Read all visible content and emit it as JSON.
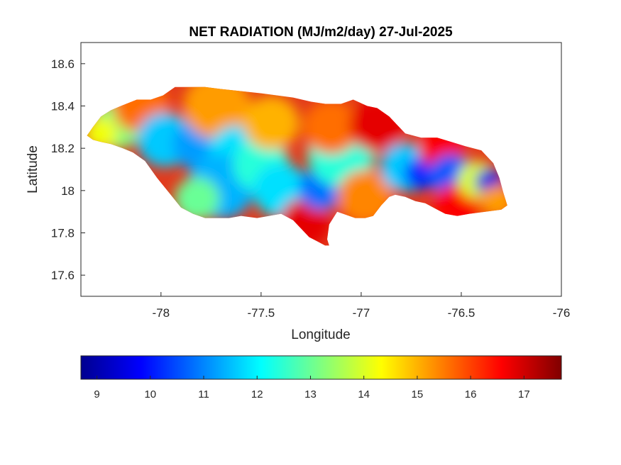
{
  "chart_data": {
    "type": "heatmap",
    "title": "NET RADIATION (MJ/m2/day) 27-Jul-2025",
    "xlabel": "Longitude",
    "ylabel": "Latitude",
    "xlim": [
      -78.4,
      -76
    ],
    "ylim": [
      17.5,
      18.7
    ],
    "x_ticks": [
      -78,
      -77.5,
      -77,
      -76.5,
      -76
    ],
    "x_tick_labels": [
      "-78",
      "-77.5",
      "-77",
      "-76.5",
      "-76"
    ],
    "y_ticks": [
      17.6,
      17.8,
      18,
      18.2,
      18.4,
      18.6
    ],
    "y_tick_labels": [
      "17.6",
      "17.8",
      "18",
      "18.2",
      "18.4",
      "18.6"
    ],
    "grid": false,
    "colormap": "jet",
    "colorbar": {
      "orientation": "horizontal",
      "placement": "bottom",
      "range": [
        8.7,
        17.7
      ],
      "ticks": [
        9,
        10,
        11,
        12,
        13,
        14,
        15,
        16,
        17
      ],
      "tick_labels": [
        "9",
        "10",
        "11",
        "12",
        "13",
        "14",
        "15",
        "16",
        "17"
      ]
    },
    "boundary": [
      [
        -78.37,
        18.26
      ],
      [
        -78.34,
        18.3
      ],
      [
        -78.3,
        18.35
      ],
      [
        -78.25,
        18.38
      ],
      [
        -78.2,
        18.4
      ],
      [
        -78.12,
        18.43
      ],
      [
        -78.05,
        18.43
      ],
      [
        -77.99,
        18.45
      ],
      [
        -77.93,
        18.49
      ],
      [
        -77.86,
        18.49
      ],
      [
        -77.78,
        18.49
      ],
      [
        -77.7,
        18.48
      ],
      [
        -77.6,
        18.47
      ],
      [
        -77.5,
        18.46
      ],
      [
        -77.42,
        18.45
      ],
      [
        -77.34,
        18.44
      ],
      [
        -77.25,
        18.42
      ],
      [
        -77.18,
        18.41
      ],
      [
        -77.1,
        18.41
      ],
      [
        -77.04,
        18.43
      ],
      [
        -76.97,
        18.4
      ],
      [
        -76.92,
        18.39
      ],
      [
        -76.86,
        18.35
      ],
      [
        -76.82,
        18.31
      ],
      [
        -76.78,
        18.27
      ],
      [
        -76.7,
        18.25
      ],
      [
        -76.62,
        18.25
      ],
      [
        -76.55,
        18.23
      ],
      [
        -76.48,
        18.21
      ],
      [
        -76.4,
        18.19
      ],
      [
        -76.34,
        18.13
      ],
      [
        -76.31,
        18.06
      ],
      [
        -76.29,
        17.99
      ],
      [
        -76.27,
        17.93
      ],
      [
        -76.3,
        17.91
      ],
      [
        -76.38,
        17.9
      ],
      [
        -76.46,
        17.89
      ],
      [
        -76.52,
        17.88
      ],
      [
        -76.58,
        17.89
      ],
      [
        -76.62,
        17.91
      ],
      [
        -76.68,
        17.94
      ],
      [
        -76.73,
        17.95
      ],
      [
        -76.78,
        17.97
      ],
      [
        -76.83,
        17.98
      ],
      [
        -76.86,
        17.97
      ],
      [
        -76.9,
        17.93
      ],
      [
        -76.94,
        17.88
      ],
      [
        -76.98,
        17.87
      ],
      [
        -77.03,
        17.87
      ],
      [
        -77.09,
        17.89
      ],
      [
        -77.12,
        17.9
      ],
      [
        -77.16,
        17.84
      ],
      [
        -77.17,
        17.77
      ],
      [
        -77.16,
        17.74
      ],
      [
        -77.18,
        17.74
      ],
      [
        -77.22,
        17.76
      ],
      [
        -77.26,
        17.78
      ],
      [
        -77.3,
        17.82
      ],
      [
        -77.34,
        17.86
      ],
      [
        -77.4,
        17.89
      ],
      [
        -77.46,
        17.88
      ],
      [
        -77.52,
        17.87
      ],
      [
        -77.6,
        17.88
      ],
      [
        -77.66,
        17.87
      ],
      [
        -77.72,
        17.87
      ],
      [
        -77.78,
        17.87
      ],
      [
        -77.84,
        17.89
      ],
      [
        -77.9,
        17.92
      ],
      [
        -77.96,
        17.99
      ],
      [
        -78.02,
        18.06
      ],
      [
        -78.08,
        18.14
      ],
      [
        -78.14,
        18.18
      ],
      [
        -78.19,
        18.2
      ],
      [
        -78.25,
        18.22
      ],
      [
        -78.3,
        18.23
      ],
      [
        -78.34,
        18.24
      ]
    ],
    "value_field": [
      {
        "lon": -78.22,
        "lat": 18.31,
        "r": 0.09,
        "value": 13.2
      },
      {
        "lon": -78.3,
        "lat": 18.27,
        "r": 0.06,
        "value": 14.2
      },
      {
        "lon": -78.1,
        "lat": 18.4,
        "r": 0.1,
        "value": 15.6
      },
      {
        "lon": -77.98,
        "lat": 18.24,
        "r": 0.1,
        "value": 11.6
      },
      {
        "lon": -77.8,
        "lat": 18.22,
        "r": 0.1,
        "value": 11.2
      },
      {
        "lon": -77.72,
        "lat": 18.4,
        "r": 0.12,
        "value": 15.2
      },
      {
        "lon": -77.62,
        "lat": 18.18,
        "r": 0.1,
        "value": 11.8
      },
      {
        "lon": -77.7,
        "lat": 18.02,
        "r": 0.12,
        "value": 11.4
      },
      {
        "lon": -77.82,
        "lat": 17.96,
        "r": 0.08,
        "value": 13.0
      },
      {
        "lon": -77.5,
        "lat": 18.12,
        "r": 0.1,
        "value": 12.4
      },
      {
        "lon": -77.45,
        "lat": 18.32,
        "r": 0.1,
        "value": 15.0
      },
      {
        "lon": -77.4,
        "lat": 18.0,
        "r": 0.1,
        "value": 11.8
      },
      {
        "lon": -77.28,
        "lat": 17.85,
        "r": 0.09,
        "value": 16.8
      },
      {
        "lon": -77.2,
        "lat": 18.01,
        "r": 0.08,
        "value": 10.8
      },
      {
        "lon": -77.1,
        "lat": 18.17,
        "r": 0.12,
        "value": 12.4
      },
      {
        "lon": -77.15,
        "lat": 18.3,
        "r": 0.1,
        "value": 15.6
      },
      {
        "lon": -76.98,
        "lat": 17.97,
        "r": 0.1,
        "value": 15.4
      },
      {
        "lon": -76.92,
        "lat": 18.31,
        "r": 0.1,
        "value": 16.8
      },
      {
        "lon": -76.78,
        "lat": 18.11,
        "r": 0.09,
        "value": 11.6
      },
      {
        "lon": -76.7,
        "lat": 18.08,
        "r": 0.06,
        "value": 10.2
      },
      {
        "lon": -76.6,
        "lat": 18.2,
        "r": 0.08,
        "value": 16.6
      },
      {
        "lon": -76.55,
        "lat": 18.07,
        "r": 0.08,
        "value": 10.6
      },
      {
        "lon": -76.52,
        "lat": 17.93,
        "r": 0.08,
        "value": 16.6
      },
      {
        "lon": -76.42,
        "lat": 18.05,
        "r": 0.07,
        "value": 14.0
      },
      {
        "lon": -76.36,
        "lat": 18.04,
        "r": 0.05,
        "value": 9.6
      },
      {
        "lon": -76.32,
        "lat": 17.95,
        "r": 0.06,
        "value": 15.2
      }
    ]
  }
}
